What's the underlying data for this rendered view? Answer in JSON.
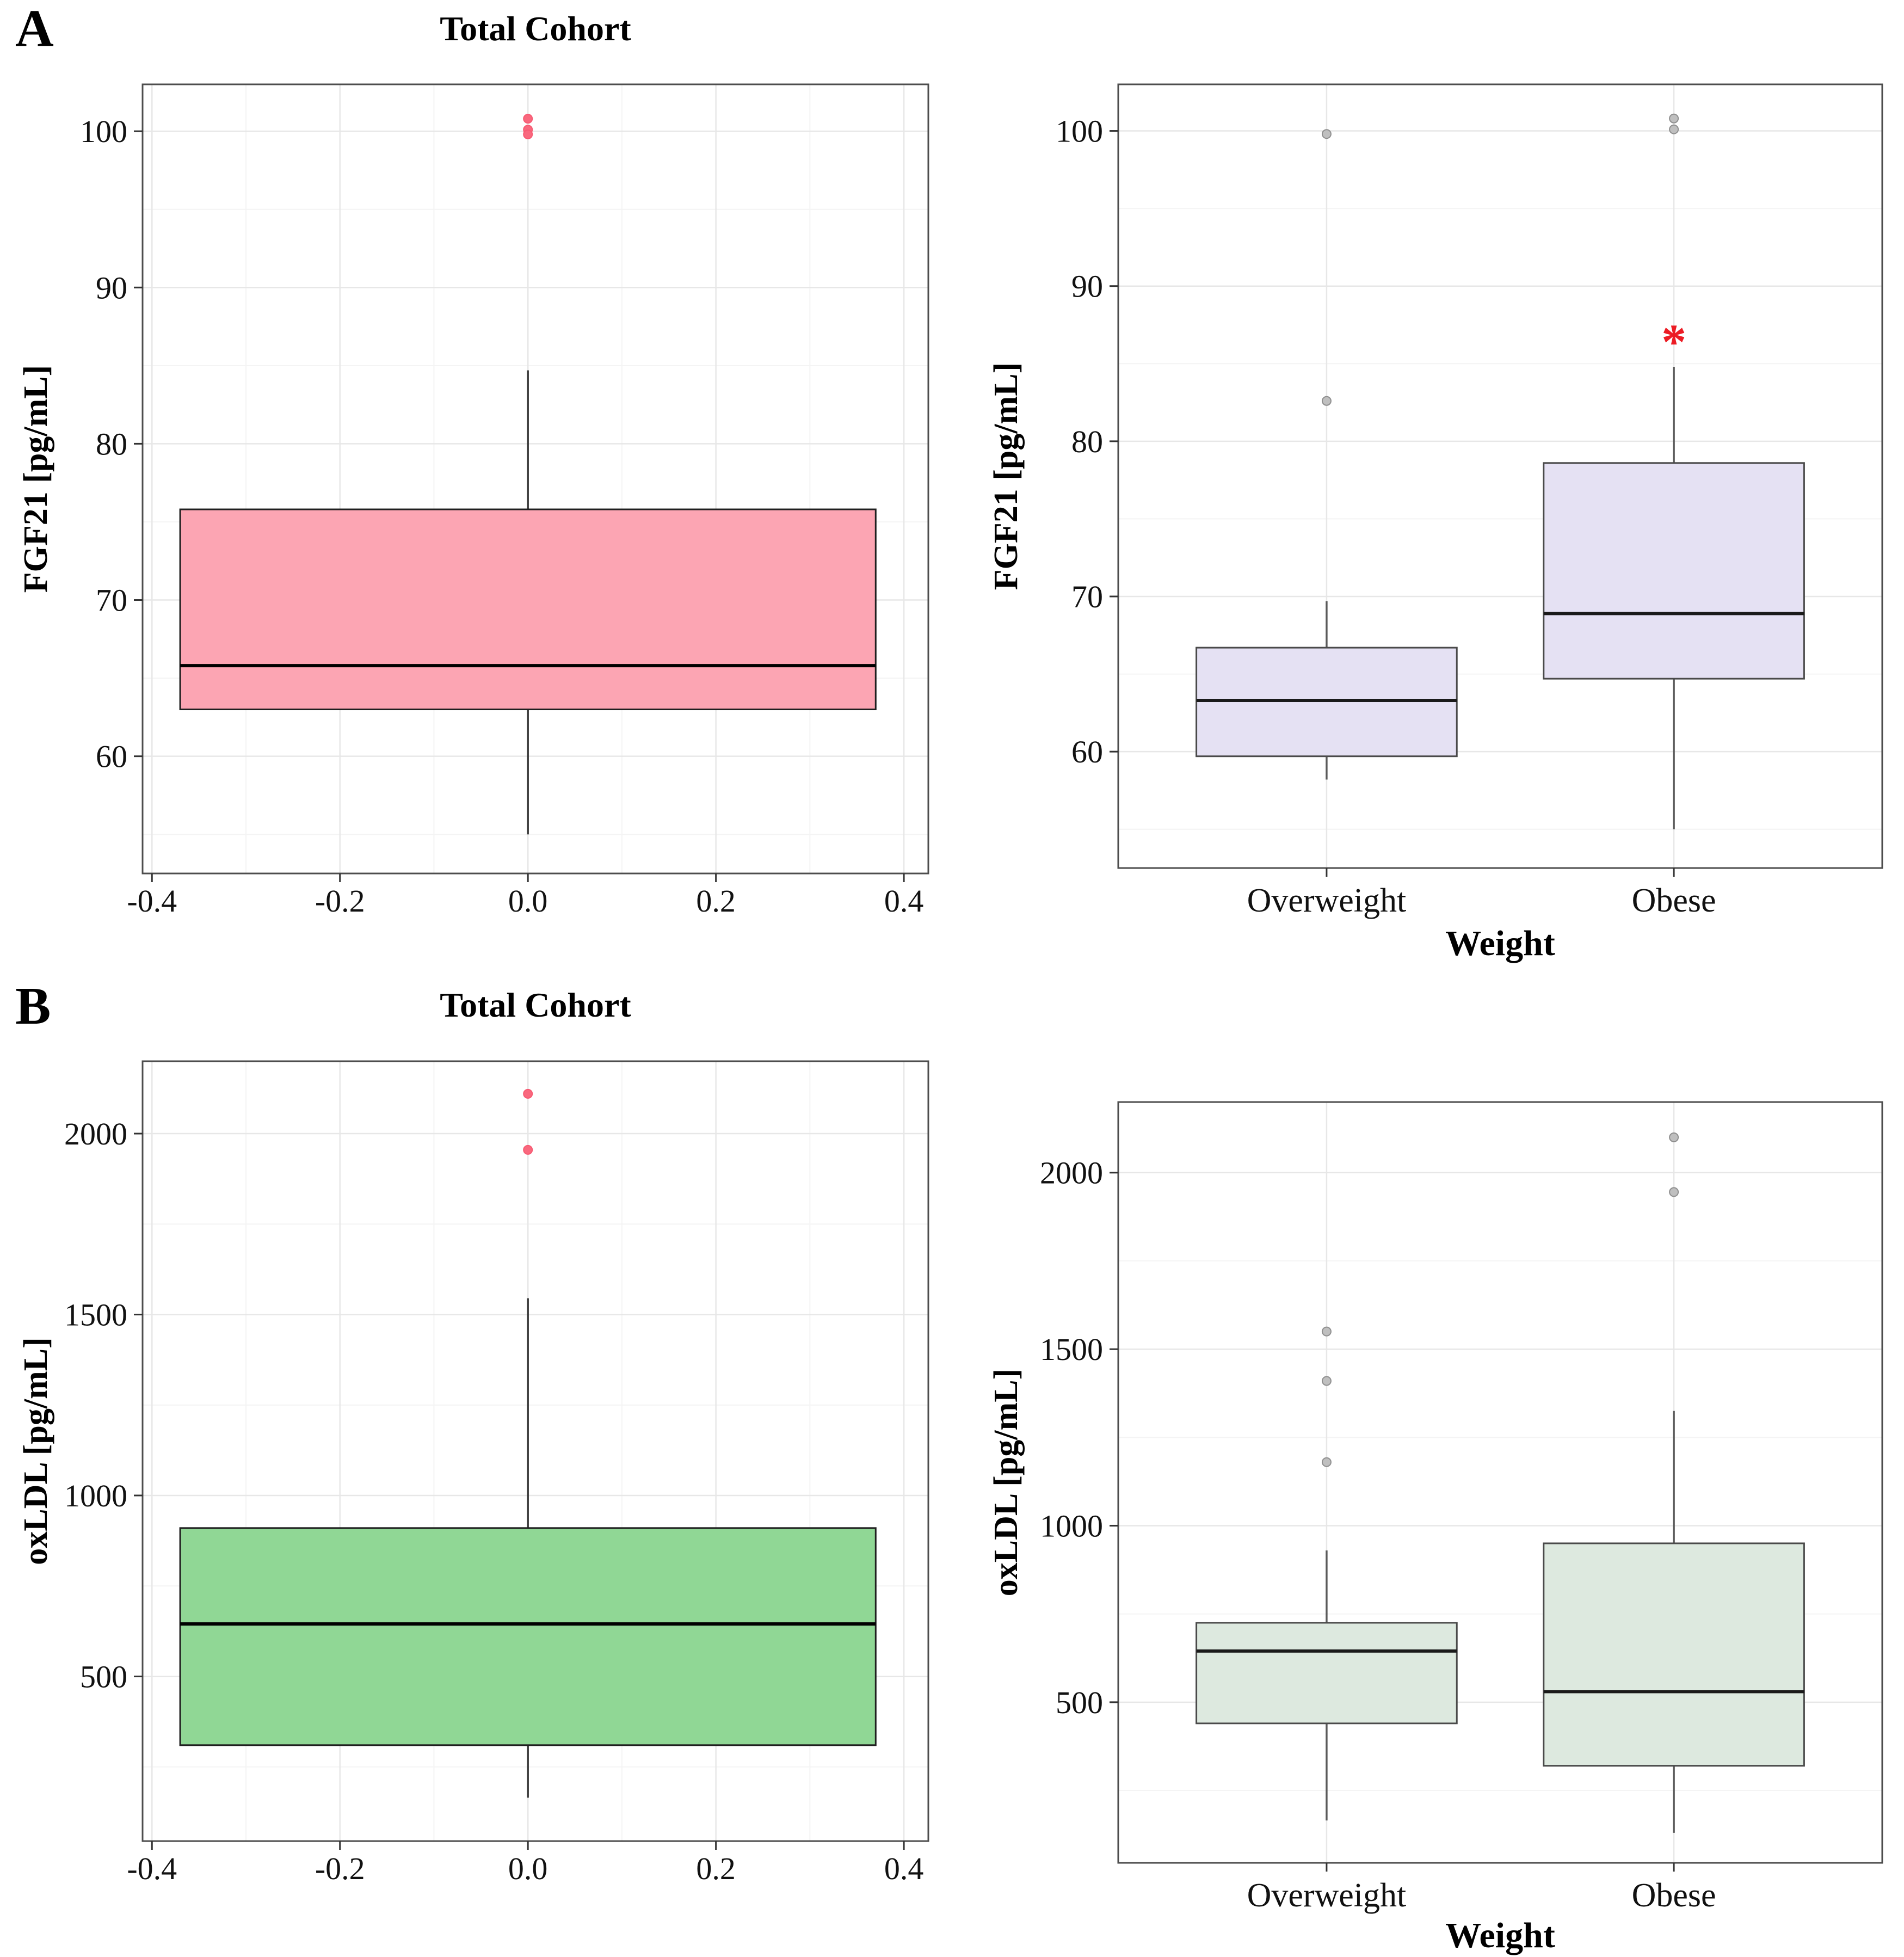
{
  "panels": [
    {
      "label": "A"
    },
    {
      "label": "B"
    }
  ],
  "colors": {
    "total_cohort_fgf21_box": "#fca5b3",
    "total_cohort_oxldl_box": "#90d795",
    "weight_fgf21_box": "#e5e1f3",
    "weight_oxldl_box": "#dde9df",
    "pink_outlier": "#f9687e",
    "gray_outlier": "#bfbfbf",
    "significance_star": "#ec1c24"
  },
  "chart_data": [
    {
      "id": "fgf21-total-cohort",
      "type": "box",
      "title": "Total Cohort",
      "ylabel": "FGF21 [pg/mL]",
      "xlabel": "",
      "ylim": [
        52.5,
        103
      ],
      "yticks": [
        {
          "v": 60,
          "label": "60"
        },
        {
          "v": 70,
          "label": "70"
        },
        {
          "v": 80,
          "label": "80"
        },
        {
          "v": 90,
          "label": "90"
        },
        {
          "v": 100,
          "label": "100"
        }
      ],
      "x_axis": {
        "kind": "numeric",
        "xlim": [
          -0.41,
          0.426
        ],
        "ticks": [
          {
            "v": -0.4,
            "label": "-0.4"
          },
          {
            "v": -0.2,
            "label": "-0.2"
          },
          {
            "v": 0,
            "label": "0.0"
          },
          {
            "v": 0.2,
            "label": "0.2"
          },
          {
            "v": 0.4,
            "label": "0.4"
          }
        ]
      },
      "boxes": [
        {
          "name": "Total cohort",
          "x": 0,
          "box_half_width": 0.37,
          "whisker_low": 55.0,
          "q1": 63.0,
          "median": 65.8,
          "q3": 75.8,
          "whisker_high": 84.7,
          "outliers": [
            100.8,
            100.1,
            99.8
          ],
          "fill": "#fca5b3",
          "stroke": "#1f1f1f",
          "median_color": "#000000",
          "whisker_color": "#3a3a3a",
          "outlier_fill": "#f9687e",
          "outlier_stroke": "#f75a72"
        }
      ],
      "annotations": []
    },
    {
      "id": "fgf21-by-weight",
      "type": "box",
      "title": "",
      "ylabel": "FGF21 [pg/mL]",
      "xlabel": "Weight",
      "ylim": [
        52.5,
        103
      ],
      "yticks": [
        {
          "v": 60,
          "label": "60"
        },
        {
          "v": 70,
          "label": "70"
        },
        {
          "v": 80,
          "label": "80"
        },
        {
          "v": 90,
          "label": "90"
        },
        {
          "v": 100,
          "label": "100"
        }
      ],
      "x_axis": {
        "kind": "categorical",
        "categories": [
          "Overweight",
          "Obese"
        ]
      },
      "boxes": [
        {
          "name": "Overweight",
          "category": "Overweight",
          "whisker_low": 58.2,
          "q1": 59.7,
          "median": 63.3,
          "q3": 66.7,
          "whisker_high": 69.7,
          "outliers": [
            99.8,
            82.6
          ],
          "fill": "#e5e1f3",
          "stroke": "#4a4a4a",
          "median_color": "#1a1a1a",
          "whisker_color": "#5a5a5a",
          "outlier_fill": "#bfbfbf",
          "outlier_stroke": "#8f8f8f"
        },
        {
          "name": "Obese",
          "category": "Obese",
          "whisker_low": 55.0,
          "q1": 64.7,
          "median": 68.9,
          "q3": 78.6,
          "whisker_high": 84.8,
          "outliers": [
            100.8,
            100.1
          ],
          "fill": "#e5e1f3",
          "stroke": "#4a4a4a",
          "median_color": "#1a1a1a",
          "whisker_color": "#5a5a5a",
          "outlier_fill": "#bfbfbf",
          "outlier_stroke": "#8f8f8f"
        }
      ],
      "annotations": [
        {
          "type": "asterisk",
          "text": "*",
          "category": "Obese",
          "y": 87,
          "color": "#ec1c24"
        }
      ]
    },
    {
      "id": "oxldl-total-cohort",
      "type": "box",
      "title": "Total Cohort",
      "ylabel": "oxLDL [pg/mL]",
      "xlabel": "",
      "ylim": [
        45,
        2200
      ],
      "yticks": [
        {
          "v": 500,
          "label": "500"
        },
        {
          "v": 1000,
          "label": "1000"
        },
        {
          "v": 1500,
          "label": "1500"
        },
        {
          "v": 2000,
          "label": "2000"
        }
      ],
      "x_axis": {
        "kind": "numeric",
        "xlim": [
          -0.41,
          0.426
        ],
        "ticks": [
          {
            "v": -0.4,
            "label": "-0.4"
          },
          {
            "v": -0.2,
            "label": "-0.2"
          },
          {
            "v": 0,
            "label": "0.0"
          },
          {
            "v": 0.2,
            "label": "0.2"
          },
          {
            "v": 0.4,
            "label": "0.4"
          }
        ]
      },
      "boxes": [
        {
          "name": "Total cohort",
          "x": 0,
          "box_half_width": 0.37,
          "whisker_low": 165,
          "q1": 310,
          "median": 645,
          "q3": 910,
          "whisker_high": 1545,
          "outliers": [
            2110,
            1955
          ],
          "fill": "#90d795",
          "stroke": "#1f1f1f",
          "median_color": "#000000",
          "whisker_color": "#3a3a3a",
          "outlier_fill": "#f9687e",
          "outlier_stroke": "#f75a72"
        }
      ],
      "annotations": []
    },
    {
      "id": "oxldl-by-weight",
      "type": "box",
      "title": "",
      "ylabel": "oxLDL [pg/mL]",
      "xlabel": "Weight",
      "ylim": [
        45,
        2200
      ],
      "yticks": [
        {
          "v": 500,
          "label": "500"
        },
        {
          "v": 1000,
          "label": "1000"
        },
        {
          "v": 1500,
          "label": "1500"
        },
        {
          "v": 2000,
          "label": "2000"
        }
      ],
      "x_axis": {
        "kind": "categorical",
        "categories": [
          "Overweight",
          "Obese"
        ]
      },
      "boxes": [
        {
          "name": "Overweight",
          "category": "Overweight",
          "whisker_low": 165,
          "q1": 440,
          "median": 645,
          "q3": 725,
          "whisker_high": 930,
          "outliers": [
            1550,
            1410,
            1180
          ],
          "fill": "#dde9df",
          "stroke": "#4a4a4a",
          "median_color": "#1a1a1a",
          "whisker_color": "#5a5a5a",
          "outlier_fill": "#bfbfbf",
          "outlier_stroke": "#8f8f8f"
        },
        {
          "name": "Obese",
          "category": "Obese",
          "whisker_low": 130,
          "q1": 320,
          "median": 530,
          "q3": 950,
          "whisker_high": 1325,
          "outliers": [
            2100,
            1945
          ],
          "fill": "#dde9df",
          "stroke": "#4a4a4a",
          "median_color": "#1a1a1a",
          "whisker_color": "#5a5a5a",
          "outlier_fill": "#bfbfbf",
          "outlier_stroke": "#8f8f8f"
        }
      ],
      "annotations": []
    }
  ]
}
